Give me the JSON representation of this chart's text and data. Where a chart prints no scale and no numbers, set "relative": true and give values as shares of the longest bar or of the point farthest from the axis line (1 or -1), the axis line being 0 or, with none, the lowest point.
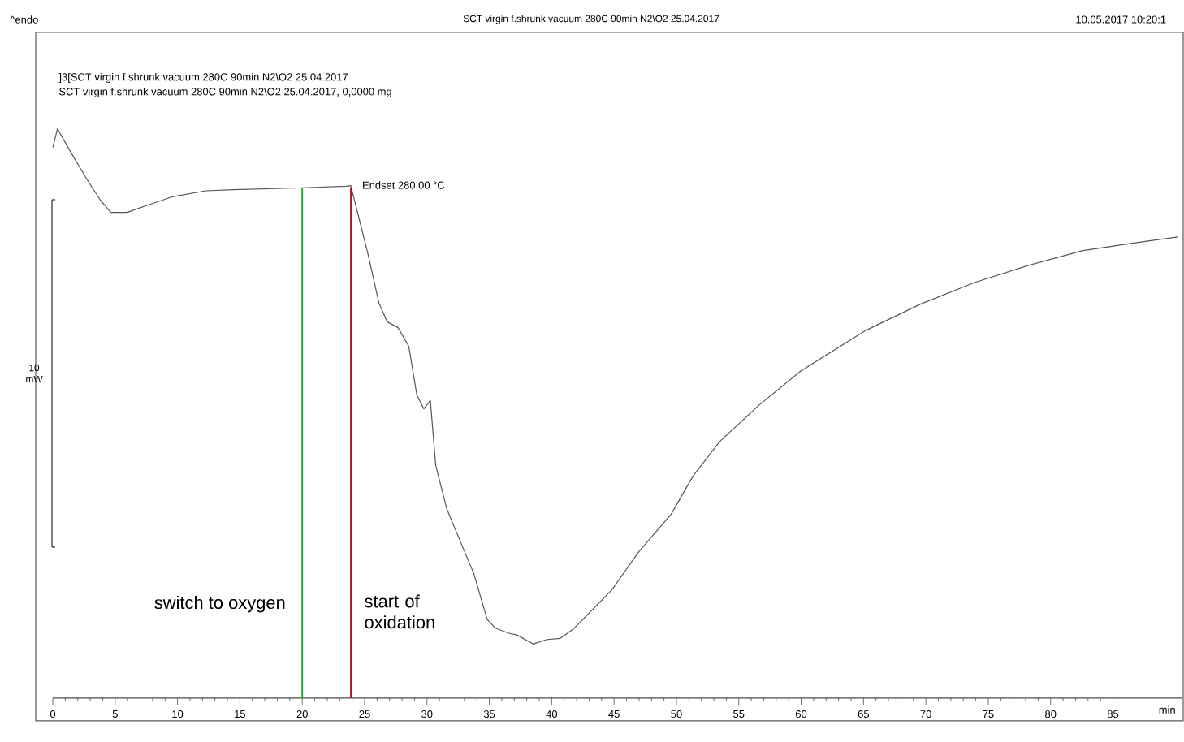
{
  "chart_data": {
    "type": "line",
    "title": "SCT virgin f.shrunk vacuum 280C 90min N2\\O2 25.04.2017",
    "xlabel": "min",
    "relative": true,
    "tick_labels": "x",
    "grid": false,
    "marker": "none",
    "line_style": "solid",
    "xlim": [
      0,
      90.5
    ],
    "xticks": [
      0,
      5,
      10,
      15,
      20,
      25,
      30,
      35,
      40,
      45,
      50,
      55,
      60,
      65,
      70,
      75,
      80,
      85
    ],
    "annotations": [
      "^endo",
      "10.05.2017 10:20:1",
      "]3[SCT virgin f.shrunk vacuum 280C 90min N2\\O2 25.04.2017",
      "SCT virgin f.shrunk vacuum 280C 90min N2\\O2 25.04.2017, 0,0000 mg",
      {
        "text": "Endset  280,00 °C",
        "x": 24,
        "y": 0.9
      },
      "10 mW"
    ],
    "ref_lines": [
      {
        "axis": "x",
        "value": 20,
        "label": "switch to oxygen",
        "color": "#1fae2a"
      },
      {
        "axis": "x",
        "value": 23.9,
        "label": "start of oxidation",
        "color": "#a8151b"
      }
    ],
    "series": [
      {
        "color": "#555555",
        "x": [
          0,
          0.37,
          1.41,
          2.71,
          3.8,
          4.66,
          5.96,
          7.49,
          9.66,
          12.27,
          14.43,
          19.64,
          23.54,
          23.89,
          24.41,
          25.28,
          26.15,
          26.8,
          27.67,
          28.54,
          29.19,
          29.75,
          30.27,
          30.7,
          31.58,
          32.66,
          33.75,
          34.83,
          35.48,
          36.56,
          37.21,
          38.52,
          39.61,
          40.69,
          41.77,
          44.82,
          46.98,
          49.58,
          51.33,
          53.49,
          56.54,
          59.99,
          65.2,
          69.56,
          73.9,
          78.23,
          82.6,
          86.9,
          90.17
        ],
        "values": [
          0.967,
          1.0,
          0.96,
          0.912,
          0.875,
          0.853,
          0.853,
          0.865,
          0.881,
          0.891,
          0.893,
          0.896,
          0.899,
          0.9,
          0.855,
          0.779,
          0.694,
          0.661,
          0.651,
          0.618,
          0.532,
          0.508,
          0.523,
          0.409,
          0.333,
          0.276,
          0.219,
          0.138,
          0.123,
          0.114,
          0.111,
          0.095,
          0.103,
          0.105,
          0.122,
          0.19,
          0.257,
          0.323,
          0.39,
          0.451,
          0.513,
          0.575,
          0.646,
          0.692,
          0.73,
          0.76,
          0.786,
          0.8,
          0.81
        ]
      }
    ]
  }
}
